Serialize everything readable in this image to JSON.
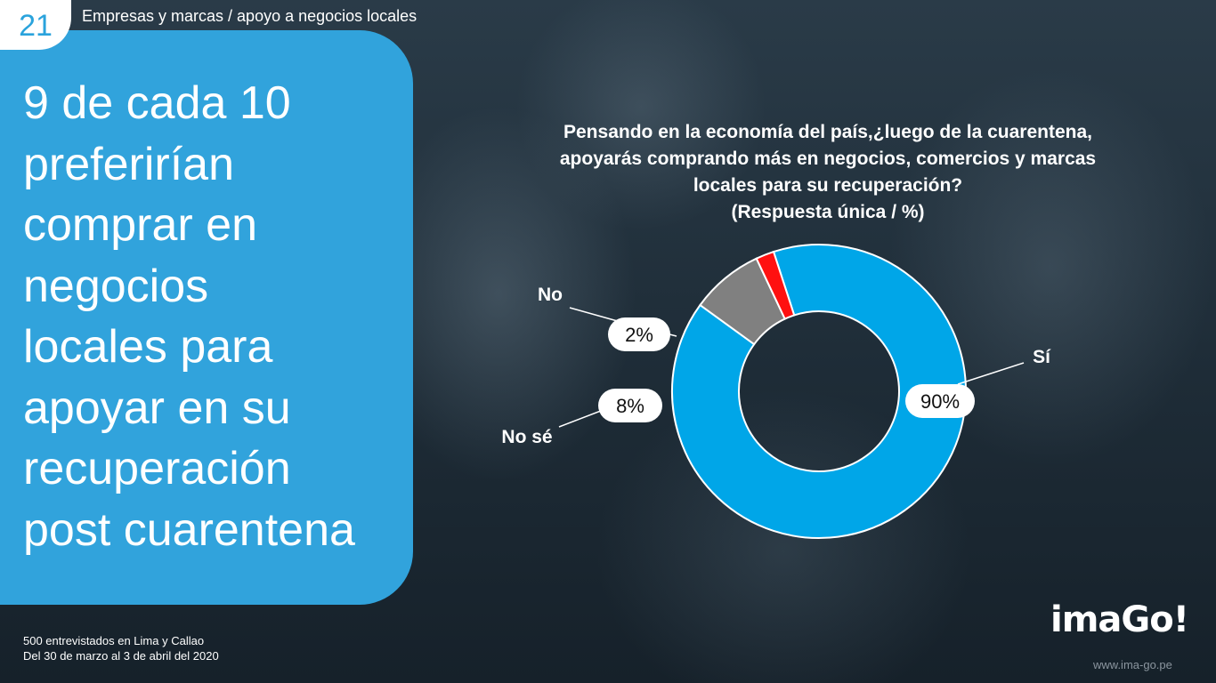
{
  "slide": {
    "number": "21",
    "section": "Empresas y marcas / apoyo a negocios locales"
  },
  "headline": "9 de cada 10\npreferirían\ncomprar en\nnegocios\nlocales para\napoyar en su\nrecuperación\npost cuarentena",
  "footer": {
    "line1": "500 entrevistados en Lima y Callao",
    "line2": "Del 30 de marzo al 3 de abril del 2020"
  },
  "logo": "imaGo!",
  "url": "www.ima-go.pe",
  "colors": {
    "accent": "#31a3dc",
    "si": "#00a6e8",
    "no": "#ff1010",
    "no_se": "#808080"
  },
  "chart_data": {
    "type": "pie",
    "style": "donut",
    "title": "Pensando en la economía del país,¿luego de la cuarentena,\napoyarás comprando más en negocios, comercios y marcas\nlocales para su recuperación?\n(Respuesta única / %)",
    "slices": [
      {
        "label": "Sí",
        "value": 90,
        "value_label": "90%",
        "color": "#00a6e8"
      },
      {
        "label": "No",
        "value": 2,
        "value_label": "2%",
        "color": "#ff1010"
      },
      {
        "label": "No sé",
        "value": 8,
        "value_label": "8%",
        "color": "#808080"
      }
    ]
  }
}
